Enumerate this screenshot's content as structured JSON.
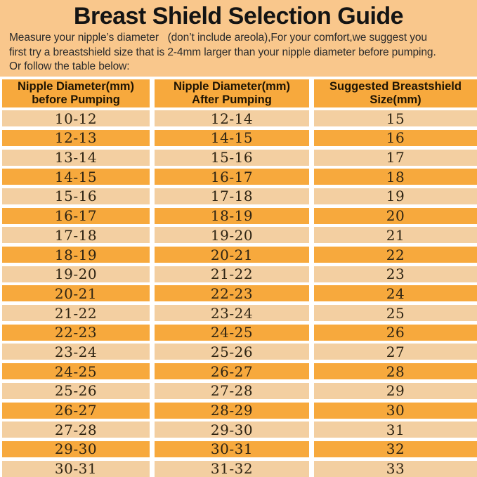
{
  "title": "Breast Shield Selection Guide",
  "intro": {
    "line1": "Measure your nipple’s diameter   (don’t include areola),For your comfort,we suggest you",
    "line2": "first try a breastshield size that is 2-4mm larger than your nipple diameter before pumping.",
    "line3": "Or follow the table below:"
  },
  "colors": {
    "page_background": "#F9C78C",
    "header_background": "#F7A93D",
    "row_light": "#F3CFA1",
    "row_dark": "#F7A93D",
    "separator": "#FFFFFF",
    "title_text": "#141414",
    "cell_text": "#2E2413"
  },
  "table": {
    "headers": [
      {
        "line1": "Nipple Diameter(mm)",
        "line2": "before Pumping"
      },
      {
        "line1": "Nipple Diameter(mm)",
        "line2": "After Pumping"
      },
      {
        "line1": "Suggested Breastshield",
        "line2": "Size(mm)"
      }
    ],
    "rows": [
      {
        "before": "10-12",
        "after": "12-14",
        "size": "15"
      },
      {
        "before": "12-13",
        "after": "14-15",
        "size": "16"
      },
      {
        "before": "13-14",
        "after": "15-16",
        "size": "17"
      },
      {
        "before": "14-15",
        "after": "16-17",
        "size": "18"
      },
      {
        "before": "15-16",
        "after": "17-18",
        "size": "19"
      },
      {
        "before": "16-17",
        "after": "18-19",
        "size": "20"
      },
      {
        "before": "17-18",
        "after": "19-20",
        "size": "21"
      },
      {
        "before": "18-19",
        "after": "20-21",
        "size": "22"
      },
      {
        "before": "19-20",
        "after": "21-22",
        "size": "23"
      },
      {
        "before": "20-21",
        "after": "22-23",
        "size": "24"
      },
      {
        "before": "21-22",
        "after": "23-24",
        "size": "25"
      },
      {
        "before": "22-23",
        "after": "24-25",
        "size": "26"
      },
      {
        "before": "23-24",
        "after": "25-26",
        "size": "27"
      },
      {
        "before": "24-25",
        "after": "26-27",
        "size": "28"
      },
      {
        "before": "25-26",
        "after": "27-28",
        "size": "29"
      },
      {
        "before": "26-27",
        "after": "28-29",
        "size": "30"
      },
      {
        "before": "27-28",
        "after": "29-30",
        "size": "31"
      },
      {
        "before": "29-30",
        "after": "30-31",
        "size": "32"
      },
      {
        "before": "30-31",
        "after": "31-32",
        "size": "33"
      }
    ]
  }
}
